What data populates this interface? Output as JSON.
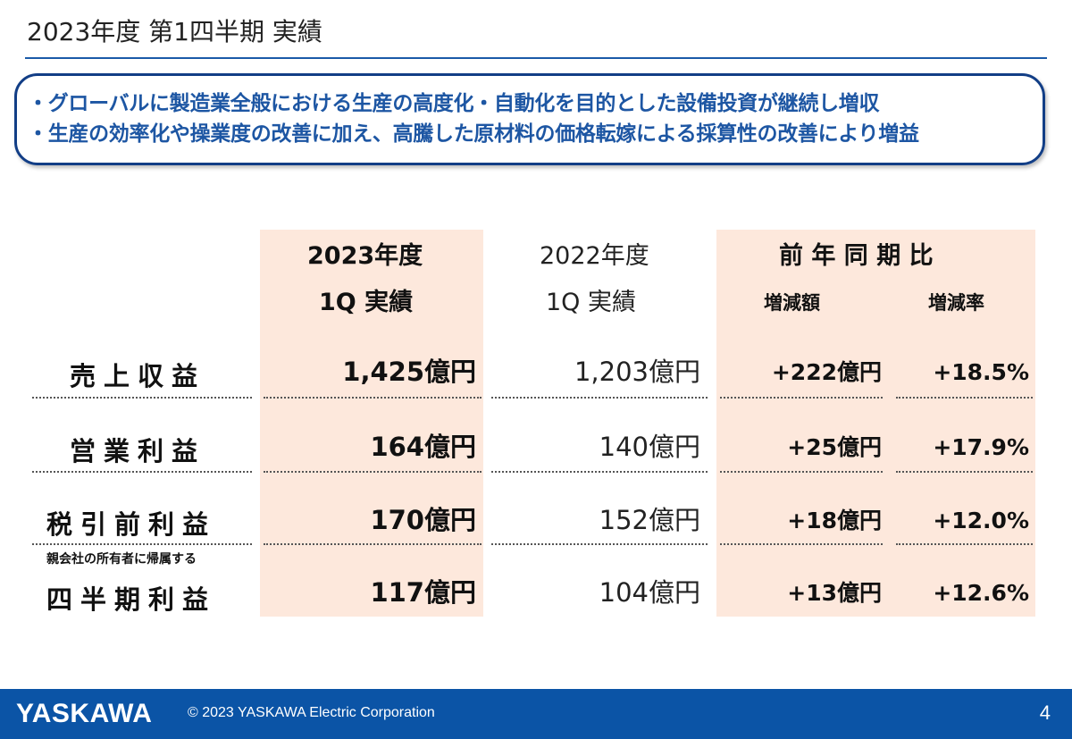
{
  "title": "2023年度 第1四半期 実績",
  "summary": [
    "・グローバルに製造業全般における生産の高度化・自動化を目的とした設備投資が継続し増収",
    "・生産の効率化や操業度の改善に加え、高騰した原材料の価格転嫁による採算性の改善により増益"
  ],
  "table": {
    "headers": {
      "current_year": "2023年度",
      "current_period": "1Q 実績",
      "prior_year": "2022年度",
      "prior_period": "1Q 実績",
      "yoy": "前 年 同 期 比",
      "yoy_amount": "増減額",
      "yoy_rate": "増減率"
    },
    "rows": [
      {
        "label": "売上収益",
        "note": "",
        "current": "1,425億円",
        "prior": "1,203億円",
        "change": "+222億円",
        "rate": "+18.5%"
      },
      {
        "label": "営業利益",
        "note": "",
        "current": "164億円",
        "prior": "140億円",
        "change": "+25億円",
        "rate": "+17.9%"
      },
      {
        "label": "税引前利益",
        "note": "",
        "current": "170億円",
        "prior": "152億円",
        "change": "+18億円",
        "rate": "+12.0%"
      },
      {
        "label": "四半期利益",
        "note": "親会社の所有者に帰属する",
        "current": "117億円",
        "prior": "104億円",
        "change": "+13億円",
        "rate": "+12.6%"
      }
    ]
  },
  "footer": {
    "logo": "YASKAWA",
    "copyright": "© 2023 YASKAWA Electric Corporation",
    "page": "4"
  },
  "colors": {
    "accent_blue": "#1d56a3",
    "box_border": "#123e86",
    "footer_bg": "#0b54a6",
    "highlight": "#fde8dc"
  }
}
